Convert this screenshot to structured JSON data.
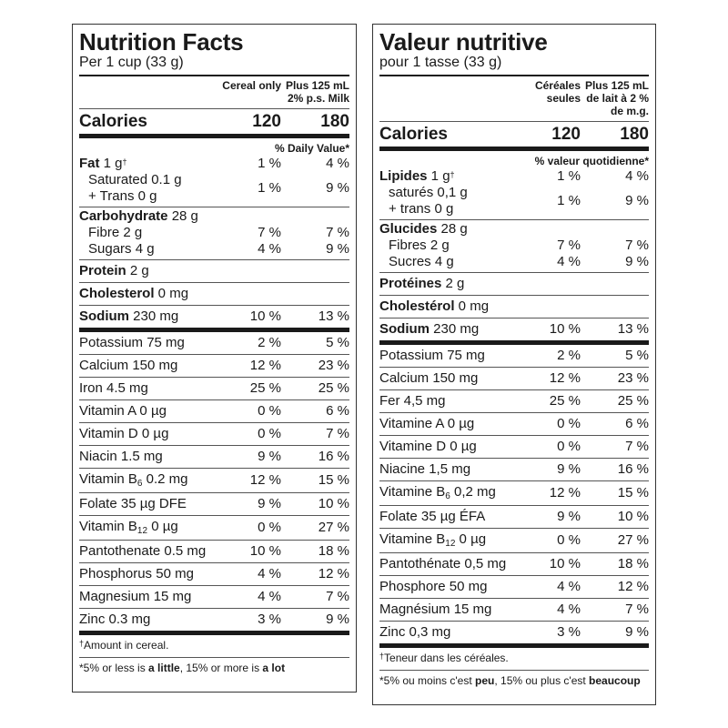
{
  "en": {
    "title": "Nutrition Facts",
    "serving": "Per 1 cup (33 g)",
    "col1": "Cereal only",
    "col2a": "Plus 125 mL",
    "col2b": "2% p.s. Milk",
    "calories_label": "Calories",
    "calories_1": "120",
    "calories_2": "180",
    "dv_header": "% Daily Value*",
    "fat": {
      "name": "Fat",
      "amt": " 1 g",
      "sup": "†",
      "v1": "1 %",
      "v2": "4 %"
    },
    "sat": {
      "line1": "Saturated 0.1 g",
      "line2": "+ Trans 0 g",
      "v1": "1 %",
      "v2": "9 %"
    },
    "carb": {
      "name": "Carbohydrate",
      "amt": " 28 g"
    },
    "fibre": {
      "label": "Fibre 2 g",
      "v1": "7 %",
      "v2": "7 %"
    },
    "sugars": {
      "label": "Sugars 4 g",
      "v1": "4 %",
      "v2": "9 %"
    },
    "protein": {
      "name": "Protein",
      "amt": " 2 g"
    },
    "cholesterol": {
      "name": "Cholesterol",
      "amt": " 0 mg"
    },
    "sodium": {
      "name": "Sodium",
      "amt": " 230 mg",
      "v1": "10 %",
      "v2": "13 %"
    },
    "vitamins": [
      {
        "label": "Potassium 75 mg",
        "v1": "2 %",
        "v2": "5 %"
      },
      {
        "label": "Calcium 150 mg",
        "v1": "12 %",
        "v2": "23 %"
      },
      {
        "label": "Iron 4.5 mg",
        "v1": "25 %",
        "v2": "25 %"
      },
      {
        "label": "Vitamin A 0 µg",
        "v1": "0 %",
        "v2": "6 %"
      },
      {
        "label": "Vitamin D 0 µg",
        "v1": "0 %",
        "v2": "7 %"
      },
      {
        "label": "Niacin 1.5 mg",
        "v1": "9 %",
        "v2": "16 %"
      },
      {
        "pre": "Vitamin B",
        "subscript": "6",
        "post": " 0.2 mg",
        "v1": "12 %",
        "v2": "15 %"
      },
      {
        "label": "Folate 35 µg DFE",
        "v1": "9 %",
        "v2": "10 %"
      },
      {
        "pre": "Vitamin B",
        "subscript": "12",
        "post": " 0 µg",
        "v1": "0 %",
        "v2": "27 %"
      },
      {
        "label": "Pantothenate 0.5 mg",
        "v1": "10 %",
        "v2": "18 %"
      },
      {
        "label": "Phosphorus 50 mg",
        "v1": "4 %",
        "v2": "12 %"
      },
      {
        "label": "Magnesium 15 mg",
        "v1": "4 %",
        "v2": "7 %"
      },
      {
        "label": "Zinc 0.3 mg",
        "v1": "3 %",
        "v2": "9 %"
      }
    ],
    "footnote_dagger": "†",
    "footnote1": "Amount in cereal.",
    "footnote2_a": "*5% or less is ",
    "footnote2_b": "a little",
    "footnote2_c": ", 15% or more is ",
    "footnote2_d": "a lot"
  },
  "fr": {
    "title": "Valeur nutritive",
    "serving": "pour 1 tasse (33 g)",
    "col1a": "Céréales",
    "col1b": "seules",
    "col2a": "Plus 125 mL",
    "col2b": "de lait à 2 %",
    "col2c": "de m.g.",
    "calories_label": "Calories",
    "calories_1": "120",
    "calories_2": "180",
    "dv_header": "% valeur quotidienne*",
    "fat": {
      "name": "Lipides",
      "amt": " 1 g",
      "sup": "†",
      "v1": "1 %",
      "v2": "4 %"
    },
    "sat": {
      "line1": "saturés 0,1 g",
      "line2": "+ trans 0 g",
      "v1": "1 %",
      "v2": "9 %"
    },
    "carb": {
      "name": "Glucides",
      "amt": " 28 g"
    },
    "fibre": {
      "label": "Fibres 2 g",
      "v1": "7 %",
      "v2": "7 %"
    },
    "sugars": {
      "label": "Sucres 4 g",
      "v1": "4 %",
      "v2": "9 %"
    },
    "protein": {
      "name": "Protéines",
      "amt": " 2 g"
    },
    "cholesterol": {
      "name": "Cholestérol",
      "amt": " 0 mg"
    },
    "sodium": {
      "name": "Sodium",
      "amt": " 230 mg",
      "v1": "10 %",
      "v2": "13 %"
    },
    "vitamins": [
      {
        "label": "Potassium 75 mg",
        "v1": "2 %",
        "v2": "5 %"
      },
      {
        "label": "Calcium 150 mg",
        "v1": "12 %",
        "v2": "23 %"
      },
      {
        "label": "Fer 4,5 mg",
        "v1": "25 %",
        "v2": "25 %"
      },
      {
        "label": "Vitamine A 0 µg",
        "v1": "0 %",
        "v2": "6 %"
      },
      {
        "label": "Vitamine D 0 µg",
        "v1": "0 %",
        "v2": "7 %"
      },
      {
        "label": "Niacine 1,5 mg",
        "v1": "9 %",
        "v2": "16 %"
      },
      {
        "pre": "Vitamine B",
        "subscript": "6",
        "post": " 0,2 mg",
        "v1": "12 %",
        "v2": "15 %"
      },
      {
        "label": "Folate 35 µg ÉFA",
        "v1": "9 %",
        "v2": "10 %"
      },
      {
        "pre": "Vitamine B",
        "subscript": "12",
        "post": " 0 µg",
        "v1": "0 %",
        "v2": "27 %"
      },
      {
        "label": "Pantothénate 0,5 mg",
        "v1": "10 %",
        "v2": "18 %"
      },
      {
        "label": "Phosphore 50 mg",
        "v1": "4 %",
        "v2": "12 %"
      },
      {
        "label": "Magnésium 15 mg",
        "v1": "4 %",
        "v2": "7 %"
      },
      {
        "label": "Zinc 0,3 mg",
        "v1": "3 %",
        "v2": "9 %"
      }
    ],
    "footnote_dagger": "†",
    "footnote1": "Teneur dans les céréales.",
    "footnote2_a": "*5% ou moins c'est ",
    "footnote2_b": "peu",
    "footnote2_c": ", 15% ou plus c'est ",
    "footnote2_d": "beaucoup"
  }
}
